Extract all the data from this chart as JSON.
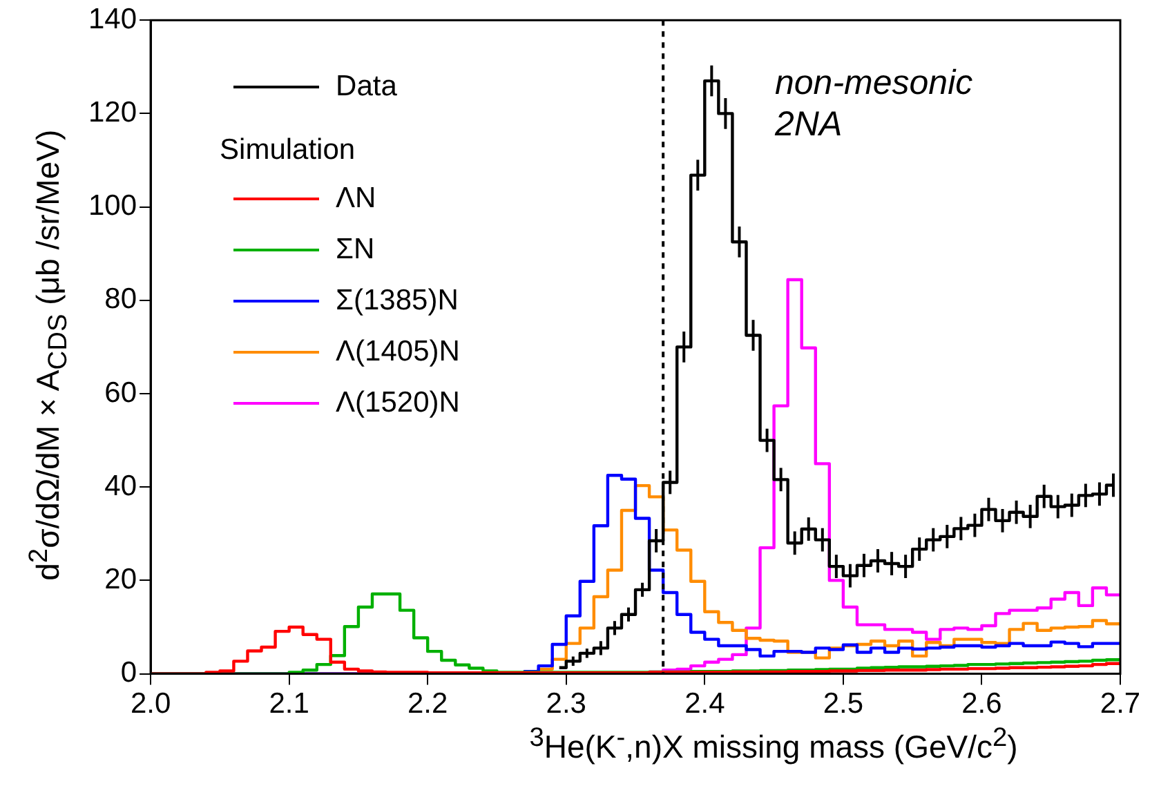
{
  "chart_data": {
    "type": "histogram",
    "xlabel": "$^{3}$He(K$^{-}$,n)X missing mass (GeV/c$^{2}$)",
    "ylabel": "d$^{2}$σ/dΩ/dM × A$_{CDS}$ (μb /sr/MeV)",
    "legend_title": "Simulation",
    "annotations": [
      "non-mesonic",
      "2NA"
    ],
    "bins": [
      2,
      2.01,
      2.02,
      2.03,
      2.04,
      2.05,
      2.06,
      2.07,
      2.08,
      2.09,
      2.1,
      2.11,
      2.12,
      2.13,
      2.14,
      2.15,
      2.16,
      2.17,
      2.18,
      2.19,
      2.2,
      2.21,
      2.22,
      2.23,
      2.24,
      2.25,
      2.26,
      2.27,
      2.28,
      2.29,
      2.3,
      2.31,
      2.32,
      2.33,
      2.34,
      2.35,
      2.36,
      2.37,
      2.38,
      2.39,
      2.4,
      2.41,
      2.42,
      2.43,
      2.44,
      2.45,
      2.46,
      2.47,
      2.48,
      2.49,
      2.5,
      2.51,
      2.52,
      2.53,
      2.54,
      2.55,
      2.56,
      2.57,
      2.58,
      2.59,
      2.6,
      2.61,
      2.62,
      2.63,
      2.64,
      2.65,
      2.66,
      2.67,
      2.68,
      2.69,
      2.7
    ],
    "series": [
      {
        "name": "Data",
        "type": "step",
        "color": "#000000",
        "x": [
          2.295,
          2.305,
          2.315,
          2.325,
          2.335,
          2.345,
          2.355,
          2.365,
          2.375,
          2.385,
          2.395,
          2.405,
          2.415,
          2.425,
          2.435,
          2.445,
          2.455,
          2.465,
          2.475,
          2.485,
          2.495,
          2.505,
          2.515,
          2.525,
          2.535,
          2.545,
          2.555,
          2.565,
          2.575,
          2.585,
          2.595,
          2.605,
          2.615,
          2.625,
          2.635,
          2.645,
          2.655,
          2.665,
          2.675,
          2.685,
          2.695
        ],
        "values": [
          1.3,
          2.7,
          4.4,
          5.5,
          9.8,
          12.7,
          18,
          28.5,
          41,
          70,
          106.8,
          127,
          120,
          92.5,
          72.5,
          50,
          41.6,
          28,
          31,
          28.7,
          23,
          21,
          23.2,
          24.2,
          23.6,
          23,
          26.7,
          28.7,
          29.4,
          31.1,
          31.8,
          35.2,
          32.8,
          34.6,
          33.7,
          38,
          35.8,
          36.1,
          38.2,
          38.5,
          40.4
        ],
        "errors": [
          null,
          1,
          1,
          1.5,
          1.5,
          1.5,
          1.5,
          2.5,
          2.5,
          3.3,
          3.3,
          3.3,
          3.3,
          3.3,
          3.3,
          2.5,
          2.5,
          2.5,
          2.5,
          2.5,
          2.5,
          2.5,
          2.5,
          2.5,
          2.5,
          2.5,
          2.5,
          2.5,
          2.5,
          2.5,
          2.5,
          2.5,
          2.5,
          2.5,
          2.5,
          2.5,
          2.5,
          2.5,
          2.5,
          2.5,
          2.5
        ]
      },
      {
        "name": "ΛN",
        "color": "#ff0000",
        "values": [
          0,
          0,
          0,
          0,
          0.3,
          0.6,
          2.7,
          4.9,
          5.7,
          9.1,
          10,
          8.4,
          7.4,
          2.5,
          1,
          0.6,
          0.4,
          0.3,
          0.3,
          0.3,
          0.2,
          0.2,
          0.2,
          0.2,
          0.2,
          0.2,
          0.2,
          0.2,
          0.2,
          0.2,
          0.2,
          0.2,
          0.2,
          0.2,
          0.2,
          0.2,
          0.3,
          0.3,
          0.3,
          0.3,
          0.3,
          0.3,
          0.4,
          0.4,
          0.4,
          0.4,
          0.5,
          0.5,
          0.5,
          0.6,
          0.6,
          0.7,
          0.7,
          0.8,
          0.8,
          0.8,
          0.9,
          1,
          1,
          1.1,
          1.1,
          1.2,
          1.3,
          1.3,
          1.4,
          1.5,
          1.6,
          1.7,
          2,
          2.2
        ]
      },
      {
        "name": "ΣN",
        "color": "#00b000",
        "values": [
          0,
          0,
          0,
          0,
          0,
          0,
          0,
          0,
          0,
          0,
          0.3,
          0.8,
          2,
          3.9,
          10.1,
          14.3,
          17.1,
          17.1,
          13.6,
          7.7,
          4.8,
          2.9,
          1.9,
          1.2,
          0.6,
          0.3,
          0.3,
          0.3,
          0.3,
          0.3,
          0.3,
          0.3,
          0.3,
          0.3,
          0.3,
          0.3,
          0.4,
          0.4,
          0.4,
          0.5,
          0.5,
          0.5,
          0.6,
          0.6,
          0.7,
          0.7,
          0.8,
          0.8,
          0.9,
          1,
          1,
          1.2,
          1.3,
          1.4,
          1.5,
          1.5,
          1.6,
          1.7,
          1.8,
          2,
          2,
          2.1,
          2.2,
          2.3,
          2.4,
          2.5,
          2.6,
          2.7,
          2.9,
          3
        ]
      },
      {
        "name": "Σ(1385)N",
        "color": "#0000ff",
        "values": [
          0,
          0,
          0,
          0,
          0,
          0,
          0,
          0,
          0,
          0,
          0,
          0,
          0,
          0,
          0,
          0,
          0,
          0,
          0,
          0,
          0,
          0,
          0,
          0,
          0,
          0,
          0.2,
          0.5,
          1.7,
          6.3,
          12.4,
          19.8,
          31.7,
          42.5,
          41.7,
          33.3,
          22.2,
          17.4,
          12.7,
          8.9,
          7.4,
          6,
          6,
          5.2,
          3.8,
          4.8,
          4.8,
          4.6,
          5.5,
          5.2,
          6.2,
          4.6,
          5.5,
          4.6,
          5.5,
          5.3,
          5.5,
          5.7,
          6,
          6,
          5.7,
          6,
          6.5,
          6,
          6,
          6.8,
          6.5,
          5.8,
          6.5,
          6.5
        ]
      },
      {
        "name": "Λ(1405)N",
        "color": "#ff8c00",
        "values": [
          0,
          0,
          0,
          0,
          0,
          0,
          0,
          0,
          0,
          0,
          0,
          0,
          0,
          0,
          0,
          0,
          0,
          0,
          0,
          0,
          0,
          0,
          0,
          0,
          0,
          0,
          0.2,
          0.5,
          1,
          3.1,
          6.5,
          9.8,
          16.5,
          22.2,
          35,
          40.3,
          37.9,
          30.8,
          26.5,
          19.8,
          13.3,
          11,
          9.3,
          7.6,
          7.2,
          7,
          4.6,
          4.6,
          3.4,
          5.5,
          6,
          6.3,
          7,
          6,
          7,
          3.8,
          6.7,
          6,
          7.4,
          7.4,
          6.7,
          6.5,
          9.5,
          10.8,
          9.3,
          9.8,
          10,
          10.1,
          11.4,
          10.7
        ]
      },
      {
        "name": "Λ(1520)N",
        "color": "#ff00ff",
        "values": [
          0,
          0,
          0,
          0,
          0,
          0,
          0,
          0,
          0,
          0,
          0,
          0,
          0,
          0,
          0,
          0,
          0,
          0,
          0,
          0,
          0,
          0,
          0,
          0,
          0,
          0,
          0,
          0,
          0,
          0,
          0.2,
          0.2,
          0.2,
          0.2,
          0.2,
          0.2,
          0.4,
          0.8,
          1,
          1.7,
          2.5,
          3.1,
          4.1,
          9.8,
          27,
          57.4,
          84.4,
          69.8,
          45,
          20,
          14.3,
          10.5,
          10.5,
          9.5,
          9.5,
          8.9,
          7.4,
          9.5,
          9.8,
          9.5,
          10.3,
          12.9,
          13.6,
          13.6,
          14.1,
          16,
          17.4,
          14.6,
          18.4,
          16.9
        ]
      }
    ],
    "xlim": [
      2,
      2.7
    ],
    "xticks": [
      {
        "value": 2,
        "label": "2.0"
      },
      2.1,
      2.2,
      2.3,
      2.4,
      2.5,
      2.6,
      2.7
    ],
    "ylim": [
      0,
      140
    ],
    "yticks": [
      0,
      20,
      40,
      60,
      80,
      100,
      120,
      140
    ],
    "ref_lines": [
      {
        "axis": "x",
        "value": 2.37,
        "color": "#000000",
        "line_style": "dotted"
      }
    ],
    "grid": false,
    "legend": "top left",
    "marker": "none"
  }
}
